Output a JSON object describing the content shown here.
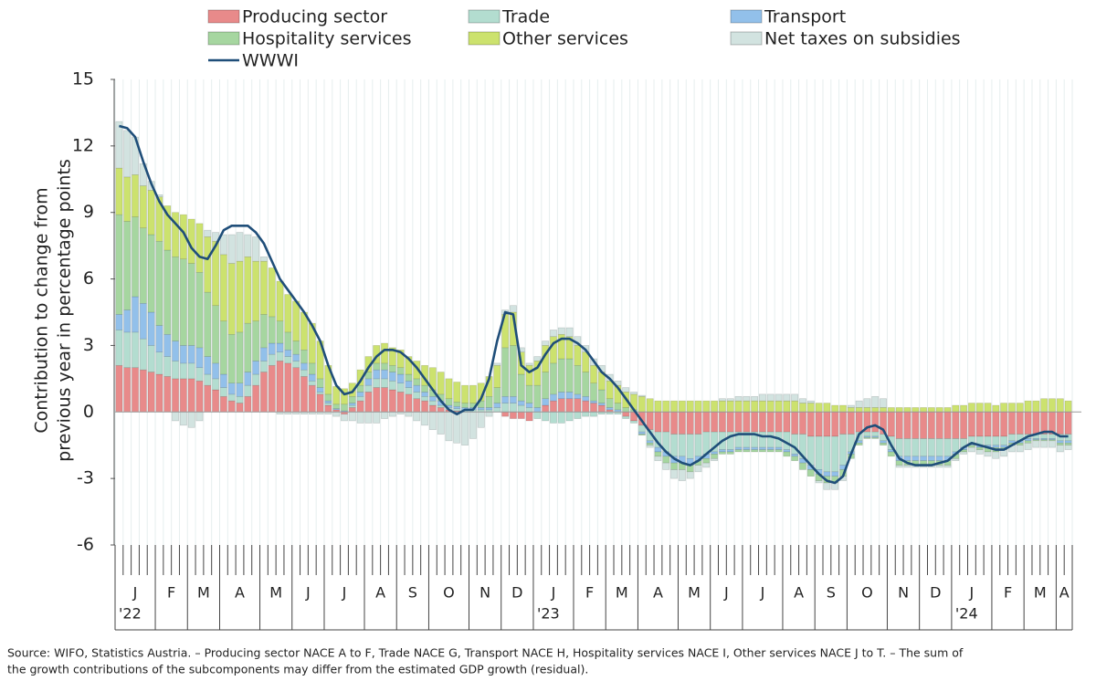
{
  "chart_data": {
    "type": "bar",
    "stacked": true,
    "y_label": [
      "Contribution to change from",
      "previous year in percentage points"
    ],
    "footnote": [
      "Source: WIFO, Statistics Austria. – Producing sector NACE A to F, Trade NACE G, Transport NACE H, Hospitality services NACE I, Other services NACE J to T. – The sum of",
      "the growth contributions of the subcomponents may differ from the estimated GDP growth (residual)."
    ],
    "ylim": [
      -6,
      15
    ],
    "yticks": [
      -6,
      -3,
      0,
      3,
      6,
      9,
      12,
      15
    ],
    "grid": true,
    "legend": "top",
    "categories": [
      [
        "J",
        "'22"
      ],
      null,
      null,
      null,
      null,
      "F",
      null,
      null,
      null,
      "M",
      null,
      null,
      null,
      "A",
      null,
      null,
      null,
      null,
      "M",
      null,
      null,
      null,
      "J",
      null,
      null,
      null,
      "J",
      null,
      null,
      null,
      null,
      "A",
      null,
      null,
      null,
      "S",
      null,
      null,
      null,
      "O",
      null,
      null,
      null,
      null,
      "N",
      null,
      null,
      null,
      "D",
      null,
      null,
      null,
      [
        "J",
        "'23"
      ],
      null,
      null,
      null,
      null,
      "F",
      null,
      null,
      null,
      "M",
      null,
      null,
      null,
      "A",
      null,
      null,
      null,
      null,
      "M",
      null,
      null,
      null,
      "J",
      null,
      null,
      null,
      "J",
      null,
      null,
      null,
      null,
      "A",
      null,
      null,
      null,
      "S",
      null,
      null,
      null,
      "O",
      null,
      null,
      null,
      null,
      "N",
      null,
      null,
      null,
      "D",
      null,
      null,
      null,
      [
        "J",
        "'24"
      ],
      null,
      null,
      null,
      null,
      "F",
      null,
      null,
      null,
      "M",
      null,
      null,
      null,
      "A",
      null
    ],
    "series": [
      {
        "name": "Producing sector",
        "color": "#e88a8a",
        "values": [
          2.1,
          2.0,
          2.0,
          1.9,
          1.8,
          1.7,
          1.6,
          1.5,
          1.5,
          1.5,
          1.4,
          1.2,
          1.0,
          0.7,
          0.5,
          0.4,
          0.7,
          1.2,
          1.8,
          2.1,
          2.3,
          2.2,
          2.0,
          1.6,
          1.2,
          0.8,
          0.3,
          0.1,
          -0.1,
          0.2,
          0.5,
          0.9,
          1.1,
          1.1,
          1.0,
          0.9,
          0.8,
          0.6,
          0.5,
          0.3,
          0.2,
          0.1,
          0.05,
          0,
          0,
          0,
          0,
          0,
          -0.2,
          -0.3,
          -0.3,
          -0.4,
          0,
          0.3,
          0.5,
          0.6,
          0.6,
          0.6,
          0.5,
          0.4,
          0.3,
          0.1,
          0,
          -0.2,
          -0.4,
          -0.6,
          -0.8,
          -0.9,
          -0.9,
          -1.0,
          -1.0,
          -1.0,
          -1.0,
          -0.9,
          -0.9,
          -0.9,
          -0.9,
          -0.9,
          -0.9,
          -0.9,
          -0.9,
          -0.9,
          -0.9,
          -0.9,
          -1.0,
          -1.0,
          -1.1,
          -1.1,
          -1.1,
          -1.1,
          -1.0,
          -1.0,
          -0.9,
          -0.9,
          -0.9,
          -1.0,
          -1.1,
          -1.2,
          -1.2,
          -1.2,
          -1.2,
          -1.2,
          -1.2,
          -1.2,
          -1.2,
          -1.2,
          -1.1,
          -1.1,
          -1.1,
          -1.1,
          -1.1,
          -1.0,
          -1.0,
          -1.0,
          -1.0,
          -1.0,
          -1.0,
          -1.0,
          -1.0
        ]
      },
      {
        "name": "Trade",
        "color": "#b3ddd0",
        "values": [
          1.6,
          1.6,
          1.6,
          1.4,
          1.2,
          1.0,
          0.9,
          0.8,
          0.7,
          0.7,
          0.6,
          0.5,
          0.5,
          0.4,
          0.3,
          0.3,
          0.5,
          0.5,
          0.5,
          0.5,
          0.4,
          0.3,
          0.3,
          0.3,
          0.2,
          0.1,
          0.1,
          0,
          0,
          0.1,
          0.2,
          0.3,
          0.4,
          0.4,
          0.4,
          0.4,
          0.3,
          0.3,
          0.2,
          0.2,
          0.1,
          0.1,
          0.1,
          0.1,
          0.1,
          0.1,
          0.1,
          0.2,
          0.4,
          0.4,
          0.3,
          0.2,
          -0.3,
          -0.4,
          -0.5,
          -0.5,
          -0.4,
          -0.3,
          -0.2,
          -0.2,
          -0.1,
          -0.1,
          -0.1,
          -0.1,
          -0.1,
          -0.3,
          -0.5,
          -0.7,
          -0.9,
          -1.0,
          -1.0,
          -1.1,
          -1.0,
          -1.0,
          -0.9,
          -0.8,
          -0.8,
          -0.7,
          -0.7,
          -0.7,
          -0.7,
          -0.7,
          -0.7,
          -0.8,
          -0.9,
          -1.1,
          -1.3,
          -1.5,
          -1.6,
          -1.6,
          -1.4,
          -0.8,
          -0.4,
          -0.2,
          -0.2,
          -0.3,
          -0.6,
          -0.8,
          -0.8,
          -0.8,
          -0.8,
          -0.8,
          -0.8,
          -0.8,
          -0.6,
          -0.4,
          -0.3,
          -0.4,
          -0.4,
          -0.4,
          -0.4,
          -0.3,
          -0.3,
          -0.2,
          -0.2,
          -0.2,
          -0.2,
          -0.3,
          -0.3
        ]
      },
      {
        "name": "Transport",
        "color": "#92c0ea",
        "values": [
          0.7,
          1.0,
          1.6,
          1.6,
          1.5,
          1.2,
          1.0,
          0.9,
          0.8,
          0.8,
          0.9,
          0.8,
          0.7,
          0.6,
          0.5,
          0.6,
          0.6,
          0.6,
          0.6,
          0.5,
          0.4,
          0.3,
          0.3,
          0.3,
          0.3,
          0.2,
          0.1,
          0.05,
          0.05,
          0.1,
          0.2,
          0.3,
          0.4,
          0.4,
          0.4,
          0.4,
          0.3,
          0.3,
          0.2,
          0.2,
          0.2,
          0.1,
          0.1,
          0.1,
          0.1,
          0.1,
          0.1,
          0.2,
          0.3,
          0.3,
          0.2,
          0.2,
          0.2,
          0.3,
          0.3,
          0.3,
          0.3,
          0.2,
          0.2,
          0.1,
          0.1,
          0.1,
          0.1,
          0,
          0,
          -0.1,
          -0.1,
          -0.2,
          -0.2,
          -0.3,
          -0.3,
          -0.3,
          -0.2,
          -0.2,
          -0.1,
          -0.1,
          -0.1,
          -0.1,
          -0.1,
          -0.1,
          -0.1,
          -0.1,
          -0.1,
          -0.1,
          -0.1,
          -0.2,
          -0.2,
          -0.2,
          -0.2,
          -0.2,
          -0.2,
          -0.1,
          -0.1,
          -0.05,
          -0.05,
          -0.1,
          -0.1,
          -0.2,
          -0.2,
          -0.2,
          -0.2,
          -0.2,
          -0.2,
          -0.2,
          -0.1,
          -0.1,
          -0.1,
          -0.1,
          -0.1,
          -0.1,
          -0.1,
          -0.1,
          -0.1,
          -0.1,
          -0.05,
          -0.05,
          -0.05,
          -0.1,
          -0.1
        ]
      },
      {
        "name": "Hospitality services",
        "color": "#a6d6a0",
        "values": [
          4.5,
          4.0,
          3.6,
          3.4,
          3.5,
          3.8,
          3.8,
          3.8,
          3.9,
          3.7,
          3.4,
          2.9,
          2.6,
          2.4,
          2.2,
          2.3,
          2.2,
          1.8,
          1.5,
          1.2,
          1.0,
          0.8,
          0.6,
          0.6,
          0.5,
          0.4,
          0.3,
          0.2,
          0.3,
          0.3,
          0.3,
          0.3,
          0.3,
          0.3,
          0.3,
          0.3,
          0.3,
          0.3,
          0.3,
          0.3,
          0.3,
          0.3,
          0.2,
          0.2,
          0.2,
          0.3,
          0.5,
          0.7,
          2.2,
          2.3,
          1.2,
          0.8,
          1.0,
          1.2,
          1.4,
          1.5,
          1.5,
          1.3,
          1.1,
          0.8,
          0.6,
          0.4,
          0.3,
          0.2,
          0.1,
          -0.05,
          -0.1,
          -0.2,
          -0.3,
          -0.3,
          -0.3,
          -0.3,
          -0.2,
          -0.2,
          -0.2,
          -0.1,
          -0.1,
          -0.1,
          -0.1,
          -0.1,
          -0.1,
          -0.1,
          -0.1,
          -0.2,
          -0.2,
          -0.3,
          -0.3,
          -0.3,
          -0.3,
          -0.3,
          -0.3,
          -0.2,
          -0.1,
          -0.05,
          -0.05,
          -0.1,
          -0.2,
          -0.2,
          -0.2,
          -0.2,
          -0.2,
          -0.2,
          -0.2,
          -0.2,
          -0.2,
          -0.1,
          -0.1,
          -0.1,
          -0.2,
          -0.2,
          -0.1,
          -0.1,
          -0.1,
          -0.1,
          -0.05,
          -0.05,
          -0.05,
          -0.1,
          -0.1
        ]
      },
      {
        "name": "Other services",
        "color": "#cce26e",
        "values": [
          2.1,
          2.0,
          1.9,
          1.9,
          2.0,
          2.0,
          2.0,
          2.0,
          2.0,
          2.0,
          2.2,
          2.5,
          2.9,
          3.0,
          3.2,
          3.2,
          3.0,
          2.7,
          2.4,
          2.2,
          1.8,
          1.7,
          1.8,
          1.7,
          1.8,
          1.7,
          1.3,
          0.8,
          0.7,
          0.6,
          0.7,
          0.7,
          0.8,
          0.9,
          0.8,
          0.8,
          0.8,
          0.8,
          0.9,
          1.0,
          1.0,
          0.9,
          0.9,
          0.8,
          0.8,
          0.8,
          0.9,
          1.0,
          1.5,
          1.5,
          1.0,
          0.9,
          1.1,
          1.2,
          1.2,
          1.1,
          1.0,
          0.9,
          0.9,
          0.8,
          0.8,
          0.8,
          0.8,
          0.7,
          0.7,
          0.7,
          0.6,
          0.5,
          0.5,
          0.5,
          0.5,
          0.5,
          0.5,
          0.5,
          0.5,
          0.5,
          0.5,
          0.5,
          0.5,
          0.5,
          0.5,
          0.5,
          0.5,
          0.5,
          0.5,
          0.4,
          0.4,
          0.4,
          0.4,
          0.3,
          0.3,
          0.2,
          0.2,
          0.2,
          0.2,
          0.2,
          0.2,
          0.2,
          0.2,
          0.2,
          0.2,
          0.2,
          0.2,
          0.2,
          0.3,
          0.3,
          0.4,
          0.4,
          0.4,
          0.3,
          0.4,
          0.4,
          0.4,
          0.5,
          0.5,
          0.6,
          0.6,
          0.6,
          0.5
        ]
      },
      {
        "name": "Net taxes on subsidies",
        "color": "#d2e3e0",
        "values": [
          2.1,
          2.1,
          1.7,
          1.0,
          0.4,
          0.1,
          0,
          -0.4,
          -0.6,
          -0.7,
          -0.4,
          0.3,
          0.4,
          0.9,
          1.3,
          1.3,
          1.0,
          1.1,
          0.2,
          0,
          -0.1,
          -0.1,
          -0.1,
          -0.1,
          -0.1,
          -0.1,
          -0.1,
          -0.2,
          -0.3,
          -0.4,
          -0.5,
          -0.5,
          -0.5,
          -0.3,
          -0.2,
          -0.1,
          -0.2,
          -0.4,
          -0.6,
          -0.8,
          -1.0,
          -1.3,
          -1.4,
          -1.5,
          -1.2,
          -0.7,
          -0.2,
          0.1,
          0.2,
          0.3,
          0.2,
          0.1,
          0.2,
          0.2,
          0.3,
          0.3,
          0.4,
          0.4,
          0.3,
          0.3,
          0.3,
          0.3,
          0.2,
          0.2,
          0.1,
          0.05,
          -0.1,
          -0.2,
          -0.3,
          -0.4,
          -0.5,
          -0.3,
          -0.3,
          -0.2,
          -0.1,
          0.1,
          0.1,
          0.2,
          0.2,
          0.2,
          0.3,
          0.3,
          0.3,
          0.3,
          0.3,
          0.2,
          0.1,
          -0.1,
          -0.3,
          -0.3,
          -0.2,
          0.1,
          0.3,
          0.4,
          0.5,
          0.4,
          0,
          -0.1,
          -0.1,
          -0.1,
          -0.1,
          -0.1,
          -0.1,
          -0.1,
          -0.1,
          -0.1,
          -0.2,
          -0.2,
          -0.2,
          -0.3,
          -0.3,
          -0.3,
          -0.3,
          -0.3,
          -0.3,
          -0.3,
          -0.3,
          -0.3,
          -0.2
        ]
      },
      {
        "name": "WWWI",
        "type": "line",
        "color": "#1f4e79",
        "values": [
          12.9,
          12.8,
          12.4,
          11.3,
          10.3,
          9.5,
          8.9,
          8.5,
          8.1,
          7.4,
          7.0,
          6.9,
          7.5,
          8.2,
          8.4,
          8.4,
          8.4,
          8.1,
          7.6,
          6.8,
          6.0,
          5.5,
          5.0,
          4.5,
          3.9,
          3.2,
          2.1,
          1.2,
          0.8,
          0.9,
          1.4,
          2.0,
          2.5,
          2.8,
          2.8,
          2.7,
          2.4,
          2.0,
          1.5,
          1.0,
          0.5,
          0.1,
          -0.1,
          0.1,
          0.1,
          0.6,
          1.5,
          3.2,
          4.5,
          4.4,
          2.1,
          1.8,
          2.0,
          2.6,
          3.1,
          3.3,
          3.3,
          3.1,
          2.8,
          2.3,
          1.8,
          1.5,
          1.1,
          0.6,
          0.1,
          -0.4,
          -0.9,
          -1.4,
          -1.8,
          -2.1,
          -2.3,
          -2.4,
          -2.2,
          -1.9,
          -1.6,
          -1.3,
          -1.1,
          -1.0,
          -1.0,
          -1.0,
          -1.1,
          -1.1,
          -1.2,
          -1.4,
          -1.6,
          -2.0,
          -2.4,
          -2.8,
          -3.1,
          -3.2,
          -2.9,
          -1.9,
          -1.0,
          -0.7,
          -0.6,
          -0.8,
          -1.5,
          -2.1,
          -2.3,
          -2.4,
          -2.4,
          -2.4,
          -2.3,
          -2.2,
          -1.9,
          -1.6,
          -1.4,
          -1.5,
          -1.6,
          -1.7,
          -1.7,
          -1.5,
          -1.3,
          -1.1,
          -1.0,
          -0.9,
          -0.9,
          -1.1,
          -1.1
        ]
      }
    ]
  }
}
